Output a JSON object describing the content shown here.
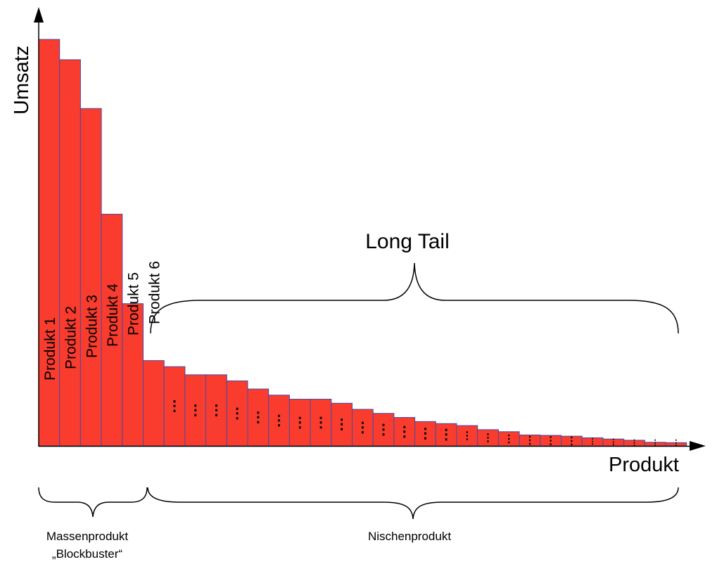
{
  "chart_data": {
    "type": "bar",
    "title": "",
    "xlabel": "Produkt",
    "ylabel": "Umsatz",
    "grid": false,
    "bar_color": "#f93c2e",
    "bar_edge_color": "#4a4aa0",
    "categories": [
      "Produkt 1",
      "Produkt 2",
      "Produkt 3",
      "Produkt 4",
      "Produkt 5",
      "Produkt 6",
      "…",
      "…",
      "…",
      "…",
      "…",
      "…",
      "…",
      "…",
      "…",
      "…",
      "…",
      "…",
      "…",
      "…",
      "…",
      "…",
      "…",
      "…",
      "…",
      "…",
      "…",
      "…",
      "…",
      "…",
      "…"
    ],
    "values": [
      100,
      95,
      83,
      57,
      35,
      21,
      19.5,
      17.5,
      17.5,
      16,
      14,
      12.5,
      11.5,
      11.5,
      10.5,
      9,
      8,
      7,
      6,
      5.5,
      5,
      4,
      3.5,
      2.7,
      2.6,
      2.4,
      2,
      1.7,
      1.4,
      0.9,
      0.8
    ],
    "ylim": [
      0,
      100
    ],
    "annotations": {
      "long_tail": "Long Tail",
      "mass_product_line1": "Massenprodukt",
      "mass_product_line2": "„Blockbuster“",
      "niche_product": "Nischenprodukt",
      "ellipsis": "⋮"
    }
  }
}
